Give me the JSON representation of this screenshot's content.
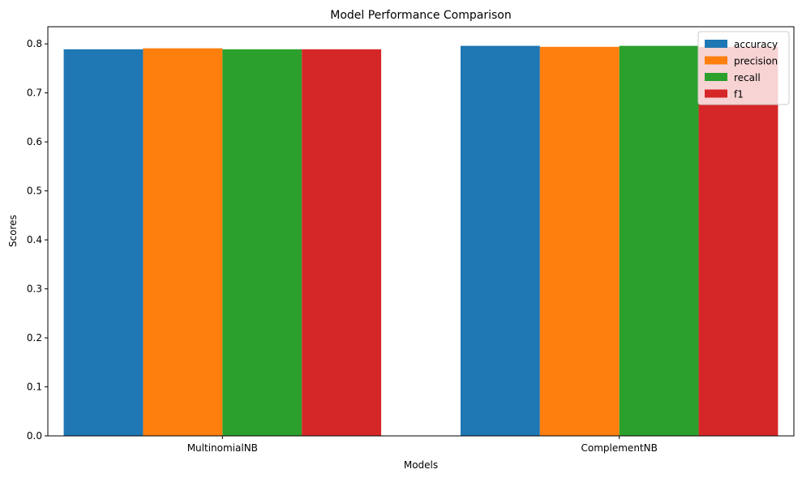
{
  "chart_data": {
    "type": "bar",
    "title": "Model Performance Comparison",
    "xlabel": "Models",
    "ylabel": "Scores",
    "categories": [
      "MultinomialNB",
      "ComplementNB"
    ],
    "series": [
      {
        "name": "accuracy",
        "values": [
          0.789,
          0.796
        ],
        "color": "#1f77b4"
      },
      {
        "name": "precision",
        "values": [
          0.791,
          0.794
        ],
        "color": "#ff7f0e"
      },
      {
        "name": "recall",
        "values": [
          0.789,
          0.796
        ],
        "color": "#2ca02c"
      },
      {
        "name": "f1",
        "values": [
          0.789,
          0.794
        ],
        "color": "#d62728"
      }
    ],
    "ylim": [
      0,
      0.835
    ],
    "yticks": [
      "0.0",
      "0.1",
      "0.2",
      "0.3",
      "0.4",
      "0.5",
      "0.6",
      "0.7",
      "0.8"
    ],
    "grid": false,
    "legend": "top-right"
  }
}
